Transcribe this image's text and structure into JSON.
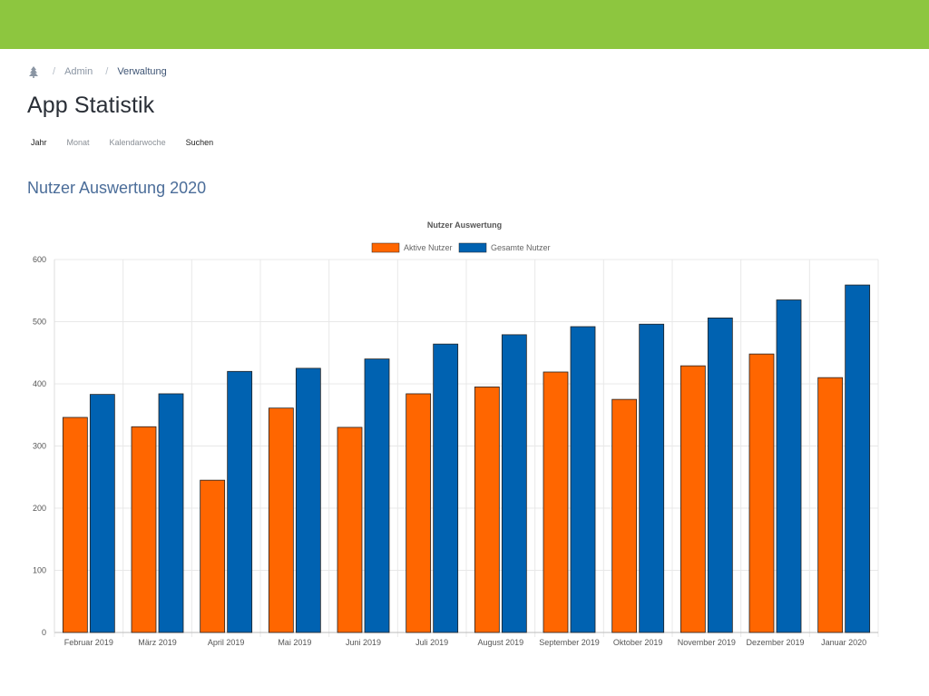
{
  "colors": {
    "topbar": "#8dc63f",
    "section_title": "#4b6d99",
    "active_users": "#ff6600",
    "total_users": "#0062b1",
    "bar_border": "#222222",
    "grid": "#e8e8e8",
    "axis_text": "#555555"
  },
  "breadcrumb": {
    "home_icon": "tree-icon",
    "items": [
      "Admin",
      "Verwaltung"
    ]
  },
  "page": {
    "title": "App Statistik"
  },
  "tabs": [
    "Jahr",
    "Monat",
    "Kalendarwoche",
    "Suchen"
  ],
  "section": {
    "title": "Nutzer Auswertung 2020"
  },
  "chart_data": {
    "type": "bar",
    "title": "Nutzer Auswertung",
    "legend_position": "top",
    "grid": true,
    "ylim": [
      0,
      600
    ],
    "yticks": [
      0,
      100,
      200,
      300,
      400,
      500,
      600
    ],
    "categories": [
      "Februar 2019",
      "März 2019",
      "April 2019",
      "Mai 2019",
      "Juni 2019",
      "Juli 2019",
      "August 2019",
      "September 2019",
      "Oktober 2019",
      "November 2019",
      "Dezember 2019",
      "Januar 2020"
    ],
    "series": [
      {
        "name": "Aktive Nutzer",
        "color": "#ff6600",
        "values": [
          346,
          331,
          245,
          361,
          330,
          384,
          395,
          419,
          375,
          429,
          448,
          410
        ]
      },
      {
        "name": "Gesamte Nutzer",
        "color": "#0062b1",
        "values": [
          383,
          384,
          420,
          425,
          440,
          464,
          479,
          492,
          496,
          506,
          535,
          559
        ]
      }
    ]
  }
}
